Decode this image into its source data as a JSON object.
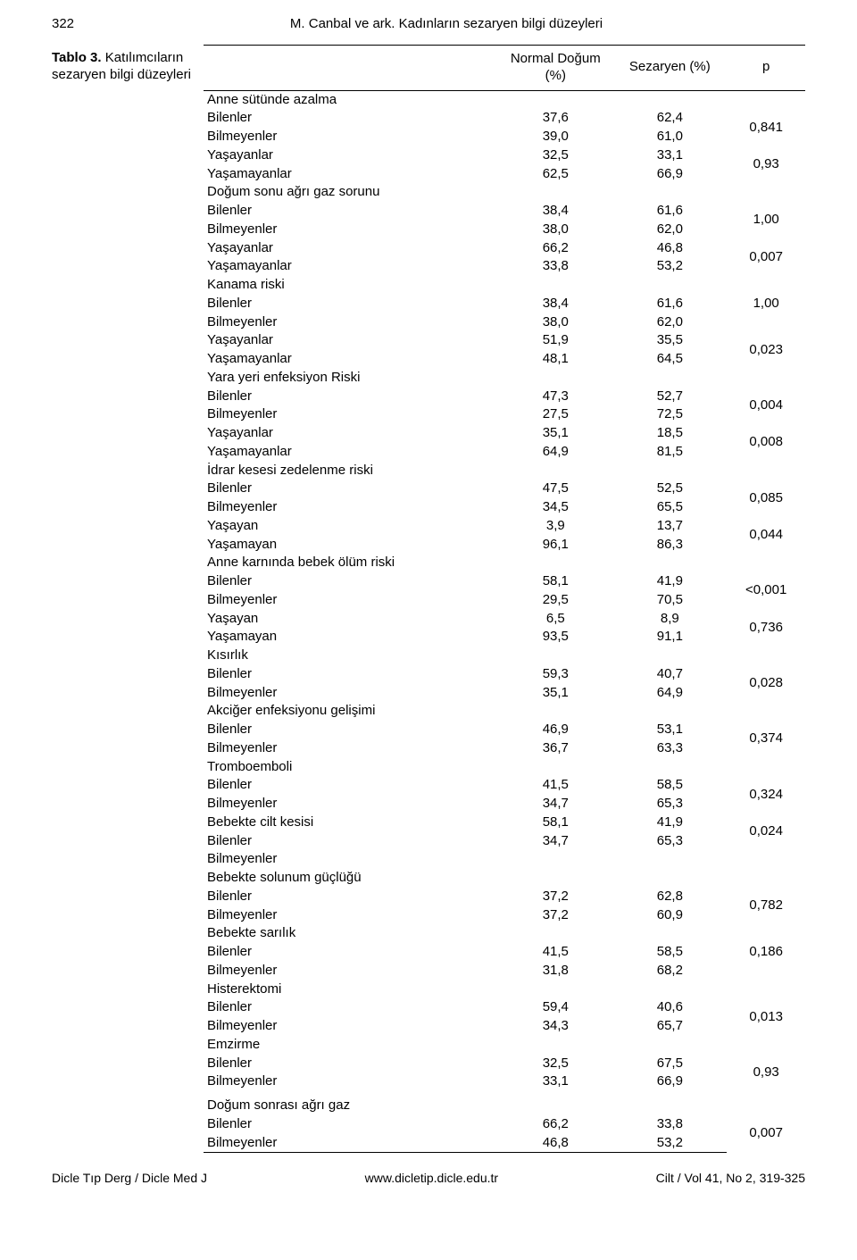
{
  "page_number": "322",
  "running_head": "M. Canbal ve ark. Kadınların sezaryen bilgi düzeyleri",
  "caption": {
    "label": "Tablo 3.",
    "text": " Katılımcıların sezaryen bilgi düzeyleri"
  },
  "columns": {
    "c0": "",
    "c1": "Normal Doğum (%)",
    "c2": "Sezaryen (%)",
    "c3": "p"
  },
  "sections": [
    {
      "title": "Anne sütünde azalma",
      "rows": [
        {
          "label": "Bilenler",
          "v1": "37,6",
          "v2": "62,4",
          "p": "0,841",
          "pspan": 2
        },
        {
          "label": "Bilmeyenler",
          "v1": "39,0",
          "v2": "61,0"
        },
        {
          "label": "Yaşayanlar",
          "v1": "32,5",
          "v2": "33,1",
          "p": "0,93",
          "pspan": 2
        },
        {
          "label": "Yaşamayanlar",
          "v1": "62,5",
          "v2": "66,9"
        }
      ]
    },
    {
      "title": "Doğum sonu ağrı gaz sorunu",
      "rows": [
        {
          "label": "Bilenler",
          "v1": "38,4",
          "v2": "61,6",
          "p": "1,00",
          "pspan": 2
        },
        {
          "label": "Bilmeyenler",
          "v1": "38,0",
          "v2": "62,0"
        },
        {
          "label": "Yaşayanlar",
          "v1": "66,2",
          "v2": "46,8",
          "p": "0,007",
          "pspan": 2
        },
        {
          "label": "Yaşamayanlar",
          "v1": "33,8",
          "v2": "53,2"
        }
      ]
    },
    {
      "title": "Kanama riski",
      "rows": [
        {
          "label": "Bilenler",
          "v1": "38,4",
          "v2": "61,6",
          "p": "1,00",
          "pspan": 1
        },
        {
          "label": "Bilmeyenler",
          "v1": "38,0",
          "v2": "62,0",
          "p": "",
          "pspan": 1
        },
        {
          "label": "Yaşayanlar",
          "v1": "51,9",
          "v2": "35,5",
          "p": "0,023",
          "pspan": 2
        },
        {
          "label": "Yaşamayanlar",
          "v1": "48,1",
          "v2": "64,5"
        }
      ]
    },
    {
      "title": "Yara yeri enfeksiyon Riski",
      "rows": [
        {
          "label": "Bilenler",
          "v1": "47,3",
          "v2": "52,7",
          "p": "0,004",
          "pspan": 2
        },
        {
          "label": "Bilmeyenler",
          "v1": "27,5",
          "v2": "72,5"
        },
        {
          "label": "Yaşayanlar",
          "v1": "35,1",
          "v2": "18,5",
          "p": "0,008",
          "pspan": 2
        },
        {
          "label": "Yaşamayanlar",
          "v1": "64,9",
          "v2": "81,5"
        }
      ]
    },
    {
      "title": "İdrar kesesi zedelenme riski",
      "rows": [
        {
          "label": "Bilenler",
          "v1": "47,5",
          "v2": "52,5",
          "p": "0,085",
          "pspan": 2
        },
        {
          "label": "Bilmeyenler",
          "v1": "34,5",
          "v2": "65,5"
        },
        {
          "label": "Yaşayan",
          "v1": "3,9",
          "v2": "13,7",
          "p": "0,044",
          "pspan": 2
        },
        {
          "label": "Yaşamayan",
          "v1": "96,1",
          "v2": "86,3"
        }
      ]
    },
    {
      "title": "Anne karnında bebek ölüm riski",
      "rows": [
        {
          "label": "Bilenler",
          "v1": "58,1",
          "v2": "41,9",
          "p": "<0,001",
          "pspan": 2
        },
        {
          "label": "Bilmeyenler",
          "v1": "29,5",
          "v2": "70,5"
        },
        {
          "label": "Yaşayan",
          "v1": "6,5",
          "v2": "8,9",
          "p": "0,736",
          "pspan": 2
        },
        {
          "label": "Yaşamayan",
          "v1": "93,5",
          "v2": "91,1"
        }
      ]
    },
    {
      "title": "Kısırlık",
      "rows": [
        {
          "label": "Bilenler",
          "v1": "59,3",
          "v2": "40,7",
          "p": "0,028",
          "pspan": 2
        },
        {
          "label": "Bilmeyenler",
          "v1": "35,1",
          "v2": "64,9"
        }
      ]
    },
    {
      "title": "Akciğer enfeksiyonu gelişimi",
      "rows": [
        {
          "label": "Bilenler",
          "v1": "46,9",
          "v2": "53,1",
          "p": "0,374",
          "pspan": 2
        },
        {
          "label": "Bilmeyenler",
          "v1": "36,7",
          "v2": "63,3"
        }
      ]
    },
    {
      "title": "Tromboemboli",
      "rows": [
        {
          "label": "Bilenler",
          "v1": "41,5",
          "v2": "58,5",
          "p": "0,324",
          "pspan": 2
        },
        {
          "label": "Bilmeyenler",
          "v1": "34,7",
          "v2": "65,3"
        }
      ]
    },
    {
      "title_pair": [
        "Bebekte cilt kesisi",
        "Bilenler"
      ],
      "pair_values": [
        [
          "58,1",
          "41,9"
        ],
        [
          "34,7",
          "65,3"
        ]
      ],
      "pair_p": "0,024",
      "trailing_label": "Bilmeyenler"
    },
    {
      "title": "Bebekte solunum güçlüğü",
      "rows": [
        {
          "label": "Bilenler",
          "v1": "37,2",
          "v2": "62,8",
          "p": "0,782",
          "pspan": 2
        },
        {
          "label": "Bilmeyenler",
          "v1": "37,2",
          "v2": "60,9"
        }
      ]
    },
    {
      "title": "Bebekte sarılık",
      "rows": [
        {
          "label": "Bilenler",
          "v1": "41,5",
          "v2": "58,5",
          "p": "0,186",
          "pspan": 1
        },
        {
          "label": "Bilmeyenler",
          "v1": "31,8",
          "v2": "68,2",
          "p": "",
          "pspan": 1
        }
      ]
    },
    {
      "title": "Histerektomi",
      "rows": [
        {
          "label": "Bilenler",
          "v1": "59,4",
          "v2": "40,6",
          "p": "0,013",
          "pspan": 2
        },
        {
          "label": "Bilmeyenler",
          "v1": "34,3",
          "v2": "65,7"
        }
      ]
    },
    {
      "title": "Emzirme",
      "rows": [
        {
          "label": "Bilenler",
          "v1": "32,5",
          "v2": "67,5",
          "p": "0,93",
          "pspan": 2
        },
        {
          "label": "Bilmeyenler",
          "v1": "33,1",
          "v2": "66,9"
        }
      ]
    },
    {
      "title": "Doğum sonrası ağrı gaz",
      "gap_before": true,
      "rows": [
        {
          "label": "Bilenler",
          "v1": "66,2",
          "v2": "33,8",
          "p": "0,007",
          "pspan": 2
        },
        {
          "label": "Bilmeyenler",
          "v1": "46,8",
          "v2": "53,2"
        }
      ]
    }
  ],
  "footer": {
    "left": "Dicle Tıp Derg / Dicle Med J",
    "center": "www.dicletip.dicle.edu.tr",
    "right": "Cilt / Vol 41, No 2, 319-325"
  }
}
